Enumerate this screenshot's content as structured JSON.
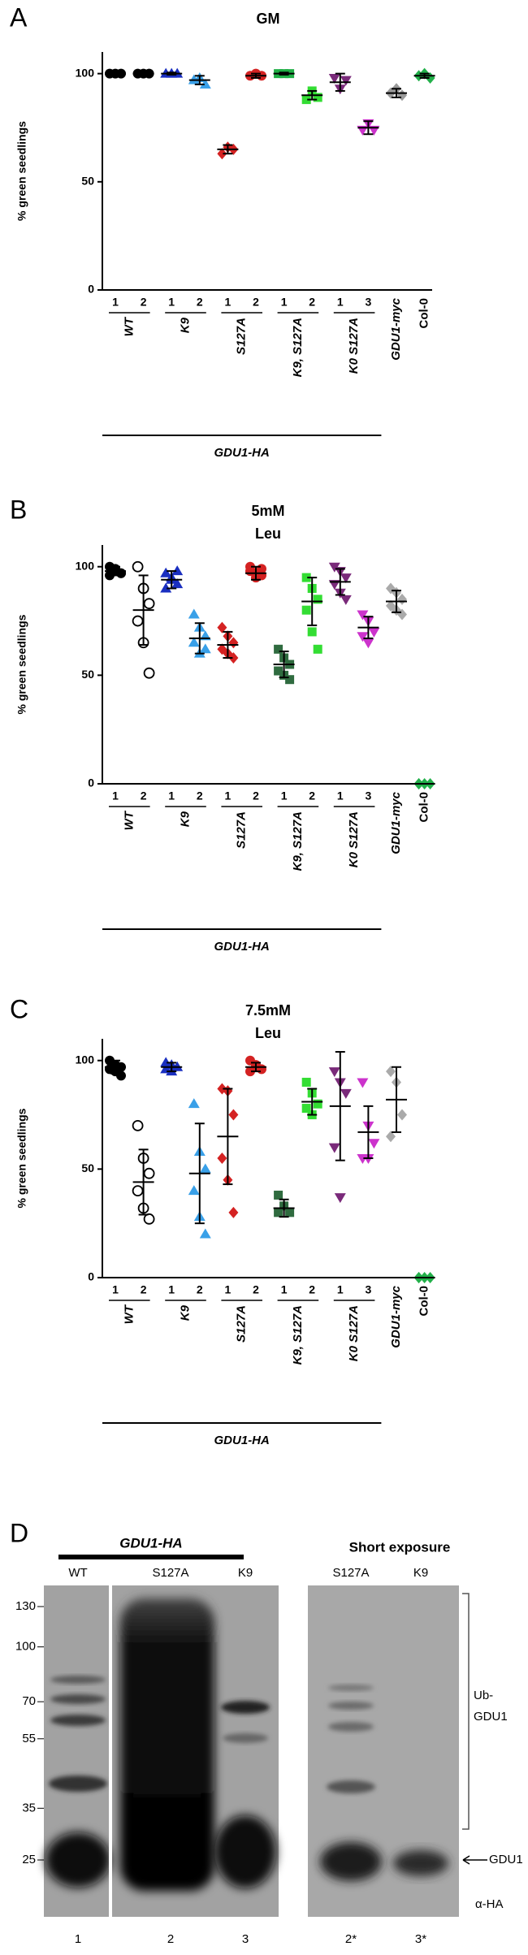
{
  "chart_data": [
    {
      "type": "strip",
      "panel": "A",
      "title": [
        "GM"
      ],
      "ylabel": "% green seedlings",
      "ylim": [
        0,
        110
      ],
      "yticks": [
        0,
        50,
        100
      ],
      "bracket": "GDU1-HA",
      "groups": [
        {
          "label": "WT",
          "italic": true,
          "columns": [
            {
              "label": "1",
              "color": "#000000",
              "marker": "circle",
              "points": [
                100,
                100,
                100
              ],
              "mean": 100,
              "sd": 0.5
            },
            {
              "label": "2",
              "color": "#000000",
              "marker": "circle",
              "points": [
                100,
                100,
                100
              ],
              "mean": 100,
              "sd": 0.5
            }
          ]
        },
        {
          "label": "K9",
          "italic": true,
          "columns": [
            {
              "label": "1",
              "color": "#1a2fc0",
              "marker": "triangle",
              "points": [
                100,
                100,
                100
              ],
              "mean": 100,
              "sd": 0.5
            },
            {
              "label": "2",
              "color": "#39a0e8",
              "marker": "triangle",
              "points": [
                97,
                98,
                95
              ],
              "mean": 97,
              "sd": 2
            }
          ]
        },
        {
          "label": "S127A",
          "italic": true,
          "columns": [
            {
              "label": "1",
              "color": "#d42222",
              "marker": "diamond",
              "points": [
                63,
                66,
                65
              ],
              "mean": 65,
              "sd": 2
            },
            {
              "label": "2",
              "color": "#d42222",
              "marker": "circle",
              "points": [
                99,
                100,
                99
              ],
              "mean": 99,
              "sd": 1
            }
          ]
        },
        {
          "label": "K9, S127A",
          "italic": true,
          "columns": [
            {
              "label": "1",
              "color": "#1fae45",
              "marker": "square",
              "points": [
                100,
                100,
                100
              ],
              "mean": 100,
              "sd": 0.5
            },
            {
              "label": "2",
              "color": "#33dd33",
              "marker": "square",
              "points": [
                88,
                92,
                89
              ],
              "mean": 90,
              "sd": 2
            }
          ]
        },
        {
          "label": "K0 S127A",
          "italic": true,
          "columns": [
            {
              "label": "1",
              "color": "#7a2a7a",
              "marker": "triangle-down",
              "points": [
                98,
                93,
                97
              ],
              "mean": 96,
              "sd": 4
            },
            {
              "label": "3",
              "color": "#cc33cc",
              "marker": "triangle-down",
              "points": [
                74,
                77,
                74
              ],
              "mean": 75,
              "sd": 3
            }
          ]
        },
        {
          "label": "GDU1-myc",
          "italic": true,
          "columns": [
            {
              "color": "#9a9a9a",
              "marker": "diamond",
              "points": [
                91,
                93,
                90
              ],
              "mean": 91,
              "sd": 2
            }
          ]
        },
        {
          "label": "Col-0",
          "italic": false,
          "columns": [
            {
              "color": "#22b04a",
              "marker": "diamond",
              "points": [
                99,
                100,
                98
              ],
              "mean": 99,
              "sd": 1
            }
          ]
        }
      ]
    },
    {
      "type": "strip",
      "panel": "B",
      "title": [
        "5mM",
        "Leu"
      ],
      "ylabel": "% green seedlings",
      "ylim": [
        0,
        110
      ],
      "yticks": [
        0,
        50,
        100
      ],
      "bracket": "GDU1-HA",
      "groups": [
        {
          "label": "WT",
          "italic": true,
          "columns": [
            {
              "label": "1",
              "color": "#000000",
              "marker": "circle",
              "points": [
                100,
                98,
                97,
                96,
                99,
                97
              ],
              "mean": 98,
              "sd": 2
            },
            {
              "label": "2",
              "color": "#000000",
              "marker": "circle-open",
              "points": [
                100,
                90,
                83,
                75,
                65,
                51
              ],
              "mean": 80,
              "sd": 16
            }
          ]
        },
        {
          "label": "K9",
          "italic": true,
          "columns": [
            {
              "label": "1",
              "color": "#1a2fc0",
              "marker": "triangle",
              "points": [
                97,
                94,
                92,
                90,
                95,
                98
              ],
              "mean": 94,
              "sd": 4
            },
            {
              "label": "2",
              "color": "#39a0e8",
              "marker": "triangle",
              "points": [
                78,
                72,
                68,
                65,
                60,
                62
              ],
              "mean": 67,
              "sd": 7
            }
          ]
        },
        {
          "label": "S127A",
          "italic": true,
          "columns": [
            {
              "label": "1",
              "color": "#d42222",
              "marker": "diamond",
              "points": [
                72,
                68,
                65,
                62,
                60,
                58
              ],
              "mean": 64,
              "sd": 6
            },
            {
              "label": "2",
              "color": "#d42222",
              "marker": "circle",
              "points": [
                100,
                97,
                96,
                98,
                95,
                99
              ],
              "mean": 97,
              "sd": 3
            }
          ]
        },
        {
          "label": "K9, S127A",
          "italic": true,
          "columns": [
            {
              "label": "1",
              "color": "#2f6b3f",
              "marker": "square",
              "points": [
                62,
                58,
                55,
                52,
                50,
                48
              ],
              "mean": 55,
              "sd": 6
            },
            {
              "label": "2",
              "color": "#33dd33",
              "marker": "square",
              "points": [
                95,
                90,
                85,
                80,
                70,
                62
              ],
              "mean": 84,
              "sd": 11
            }
          ]
        },
        {
          "label": "K0 S127A",
          "italic": true,
          "columns": [
            {
              "label": "1",
              "color": "#7a2a7a",
              "marker": "triangle-down",
              "points": [
                100,
                98,
                95,
                92,
                88,
                85
              ],
              "mean": 93,
              "sd": 6
            },
            {
              "label": "3",
              "color": "#cc33cc",
              "marker": "triangle-down",
              "points": [
                78,
                75,
                70,
                68,
                65
              ],
              "mean": 72,
              "sd": 5
            }
          ]
        },
        {
          "label": "GDU1-myc",
          "italic": true,
          "columns": [
            {
              "color": "#aaaaaa",
              "marker": "diamond",
              "points": [
                90,
                88,
                85,
                82,
                80,
                78
              ],
              "mean": 84,
              "sd": 5
            }
          ]
        },
        {
          "label": "Col-0",
          "italic": false,
          "columns": [
            {
              "color": "#22b04a",
              "marker": "diamond",
              "points": [
                0,
                0,
                0,
                0
              ],
              "mean": 0,
              "sd": 0
            }
          ]
        }
      ]
    },
    {
      "type": "strip",
      "panel": "C",
      "title": [
        "7.5mM",
        "Leu"
      ],
      "ylabel": "% green seedlings",
      "ylim": [
        0,
        110
      ],
      "yticks": [
        0,
        50,
        100
      ],
      "bracket": "GDU1-HA",
      "groups": [
        {
          "label": "WT",
          "italic": true,
          "columns": [
            {
              "label": "1",
              "color": "#000000",
              "marker": "circle",
              "points": [
                100,
                98,
                97,
                96,
                95,
                93
              ],
              "mean": 97,
              "sd": 3
            },
            {
              "label": "2",
              "color": "#000000",
              "marker": "circle-open",
              "points": [
                70,
                55,
                48,
                40,
                32,
                27
              ],
              "mean": 44,
              "sd": 15
            }
          ]
        },
        {
          "label": "K9",
          "italic": true,
          "columns": [
            {
              "label": "1",
              "color": "#1a2fc0",
              "marker": "triangle",
              "points": [
                99,
                98,
                97,
                96,
                95
              ],
              "mean": 97,
              "sd": 2
            },
            {
              "label": "2",
              "color": "#39a0e8",
              "marker": "triangle",
              "points": [
                80,
                58,
                50,
                40,
                28,
                20
              ],
              "mean": 48,
              "sd": 23
            }
          ]
        },
        {
          "label": "S127A",
          "italic": true,
          "columns": [
            {
              "label": "1",
              "color": "#d42222",
              "marker": "diamond",
              "points": [
                87,
                86,
                75,
                55,
                45,
                30
              ],
              "mean": 65,
              "sd": 22
            },
            {
              "label": "2",
              "color": "#d42222",
              "marker": "circle",
              "points": [
                100,
                98,
                96,
                95,
                97
              ],
              "mean": 97,
              "sd": 2
            }
          ]
        },
        {
          "label": "K9, S127A",
          "italic": true,
          "columns": [
            {
              "label": "1",
              "color": "#2f6b3f",
              "marker": "square",
              "points": [
                38,
                33,
                30,
                30
              ],
              "mean": 32,
              "sd": 4
            },
            {
              "label": "2",
              "color": "#33dd33",
              "marker": "square",
              "points": [
                90,
                85,
                80,
                78,
                75
              ],
              "mean": 81,
              "sd": 6
            }
          ]
        },
        {
          "label": "K0 S127A",
          "italic": true,
          "columns": [
            {
              "label": "1",
              "color": "#7a2a7a",
              "marker": "triangle-down",
              "points": [
                95,
                90,
                85,
                60,
                37
              ],
              "mean": 79,
              "sd": 25
            },
            {
              "label": "3",
              "color": "#cc33cc",
              "marker": "triangle-down",
              "points": [
                90,
                70,
                62,
                55,
                55
              ],
              "mean": 67,
              "sd": 12
            }
          ]
        },
        {
          "label": "GDU1-myc",
          "italic": true,
          "columns": [
            {
              "color": "#aaaaaa",
              "marker": "diamond",
              "points": [
                95,
                90,
                75,
                65
              ],
              "mean": 82,
              "sd": 15
            }
          ]
        },
        {
          "label": "Col-0",
          "italic": false,
          "columns": [
            {
              "color": "#22b04a",
              "marker": "diamond",
              "points": [
                0,
                0,
                0,
                0
              ],
              "mean": 0,
              "sd": 0
            }
          ]
        }
      ]
    }
  ],
  "blot": {
    "panel": "D",
    "construct": "GDU1-HA",
    "short_exposure": "Short exposure",
    "lanes": [
      "WT",
      "S127A",
      "K9"
    ],
    "short_lanes": [
      "S127A",
      "K9"
    ],
    "lane_numbers": [
      "1",
      "2",
      "3"
    ],
    "short_lane_numbers": [
      "2*",
      "3*"
    ],
    "markers": [
      130,
      100,
      70,
      55,
      35,
      25
    ],
    "ub_label": [
      "Ub-",
      "GDU1"
    ],
    "band_label": "GDU1",
    "antibody": "α-HA"
  }
}
